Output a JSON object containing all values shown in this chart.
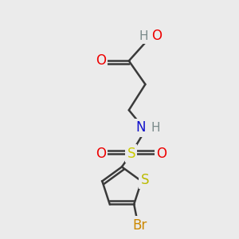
{
  "background_color": "#ebebeb",
  "bond_color": "#3a3a3a",
  "bond_width": 1.8,
  "atom_colors": {
    "C": "#3a3a3a",
    "H": "#7a8a8a",
    "O": "#ee0000",
    "N": "#1111cc",
    "S_sulfonyl": "#cccc00",
    "S_thiophene": "#bbbb00",
    "Br": "#cc8800"
  },
  "font_size": 12,
  "font_size_h": 11
}
